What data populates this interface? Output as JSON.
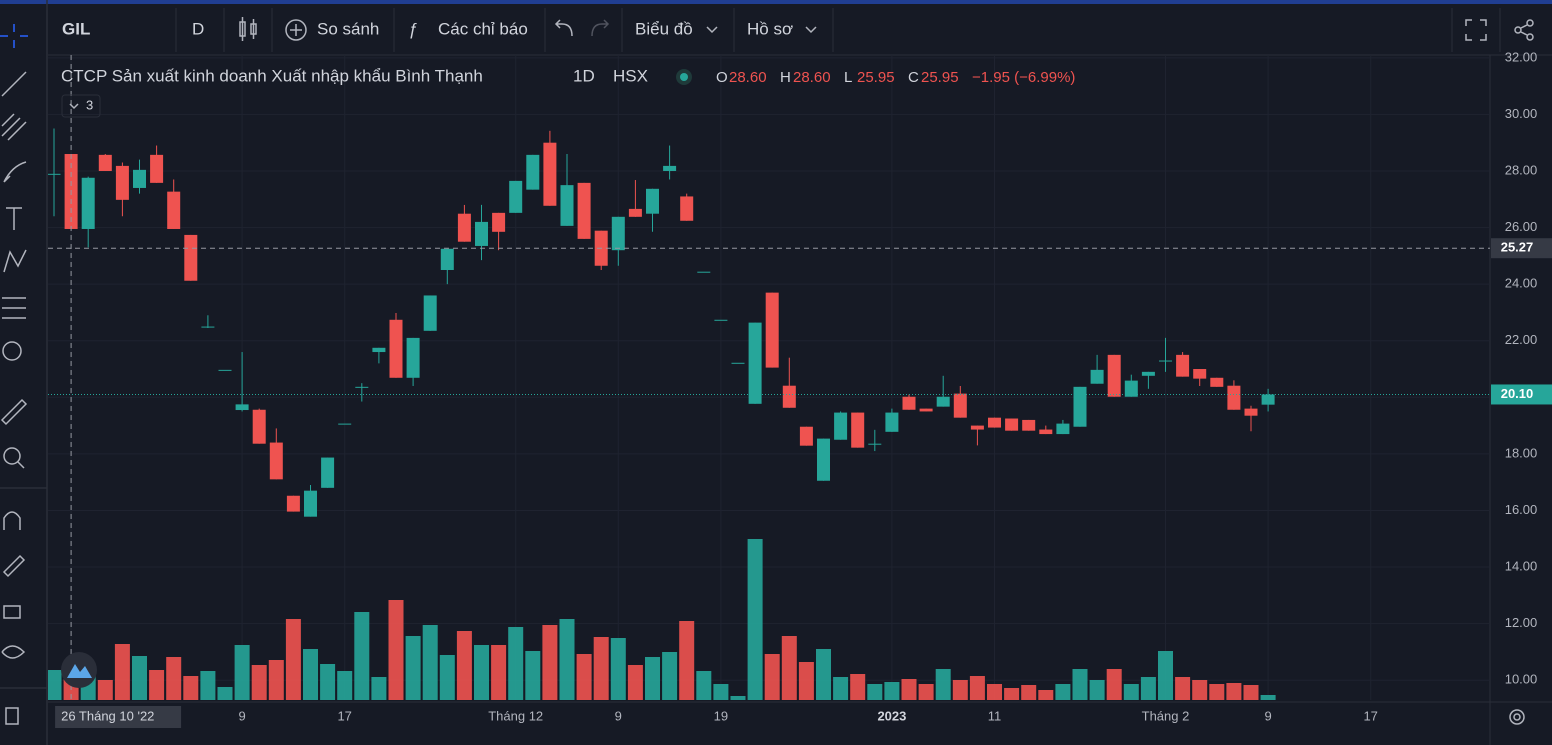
{
  "toolbar": {
    "symbol": "GIL",
    "interval": "D",
    "compare": "So sánh",
    "indicators": "Các chỉ báo",
    "chart_menu": "Biểu đồ",
    "profile_menu": "Hồ sơ"
  },
  "legend": {
    "name": "CTCP Sản xuất kinh doanh Xuất nhập khẩu Bình Thạnh",
    "interval": "1D",
    "exchange": "HSX",
    "ohlc": [
      {
        "key": "O",
        "value": "28.60"
      },
      {
        "key": "H",
        "value": "28.60"
      },
      {
        "key": "L",
        "value": "25.95"
      },
      {
        "key": "C",
        "value": "25.95"
      }
    ],
    "change": "−1.95 (−6.99%)",
    "collapsed_count": 3
  },
  "chart_data": {
    "type": "candlestick",
    "categories": [
      null,
      "26 Tháng 10 '22",
      null,
      null,
      null,
      null,
      null,
      null,
      null,
      null,
      null,
      "9",
      null,
      null,
      null,
      null,
      null,
      "17",
      null,
      null,
      null,
      null,
      null,
      null,
      null,
      null,
      null,
      "Tháng 12",
      null,
      null,
      null,
      null,
      null,
      "9",
      null,
      null,
      null,
      null,
      null,
      "19",
      null,
      null,
      null,
      null,
      null,
      null,
      null,
      null,
      null,
      "2023",
      null,
      null,
      null,
      null,
      null,
      "11",
      null,
      null,
      null,
      null,
      null,
      null,
      null,
      null,
      null,
      "Tháng 2",
      null,
      null,
      null,
      null,
      null,
      "9",
      null,
      null,
      null,
      null,
      null,
      "17"
    ],
    "open": [
      27.9,
      28.6,
      25.95,
      28.57,
      28.18,
      27.4,
      28.57,
      27.27,
      25.74,
      22.5,
      20.97,
      19.55,
      19.56,
      18.4,
      16.52,
      15.78,
      16.8,
      19.07,
      20.37,
      21.6,
      22.74,
      20.69,
      22.35,
      24.5,
      26.49,
      25.35,
      26.52,
      26.52,
      27.34,
      29.0,
      26.06,
      27.58,
      25.89,
      25.2,
      26.66,
      26.49,
      28.0,
      27.1,
      24.44,
      22.74,
      21.22,
      19.77,
      23.7,
      20.41,
      18.96,
      17.05,
      18.5,
      19.46,
      18.36,
      18.78,
      20.02,
      19.6,
      19.67,
      20.13,
      19.0,
      19.28,
      19.25,
      19.2,
      18.86,
      18.7,
      18.96,
      20.48,
      21.5,
      20.02,
      20.76,
      21.3,
      21.5,
      21.0,
      20.69,
      20.41,
      19.6,
      19.74,
      null,
      null,
      null,
      null,
      null,
      null
    ],
    "high": [
      29.5,
      28.6,
      27.8,
      28.6,
      28.3,
      28.4,
      28.9,
      27.7,
      25.74,
      22.9,
      20.97,
      21.6,
      19.6,
      18.9,
      16.52,
      16.9,
      17.87,
      19.07,
      20.5,
      21.75,
      22.98,
      22.1,
      23.6,
      25.25,
      26.8,
      26.8,
      26.52,
      27.65,
      28.57,
      29.42,
      28.6,
      27.58,
      25.89,
      26.38,
      27.68,
      27.37,
      28.9,
      27.2,
      24.44,
      22.74,
      21.22,
      22.64,
      23.7,
      21.4,
      18.96,
      18.54,
      19.5,
      19.46,
      18.85,
      19.6,
      20.1,
      19.6,
      20.76,
      20.4,
      19.0,
      19.28,
      19.25,
      19.2,
      19.0,
      19.2,
      20.37,
      21.5,
      21.5,
      20.8,
      20.9,
      22.1,
      21.6,
      21.0,
      20.69,
      20.6,
      19.7,
      20.3,
      null,
      null,
      null,
      null,
      null,
      null
    ],
    "low": [
      26.4,
      25.95,
      25.3,
      28.0,
      26.4,
      27.2,
      27.58,
      25.95,
      24.12,
      22.45,
      20.97,
      19.5,
      18.36,
      17.1,
      15.96,
      15.78,
      16.8,
      19.07,
      19.85,
      21.2,
      20.69,
      20.4,
      22.35,
      24.0,
      25.5,
      24.85,
      25.2,
      26.52,
      27.34,
      26.77,
      26.06,
      25.6,
      24.5,
      24.65,
      26.38,
      25.85,
      27.7,
      26.24,
      24.44,
      22.74,
      21.22,
      19.77,
      21.05,
      19.63,
      18.29,
      17.05,
      18.5,
      18.22,
      18.1,
      18.78,
      19.56,
      19.5,
      19.67,
      19.28,
      18.3,
      18.93,
      18.82,
      18.82,
      18.7,
      18.7,
      18.96,
      20.48,
      20.02,
      20.02,
      20.3,
      20.9,
      20.73,
      20.4,
      20.37,
      19.56,
      18.8,
      19.5,
      null,
      null,
      null,
      null,
      null,
      null
    ],
    "close": [
      27.9,
      25.95,
      27.76,
      28.0,
      26.98,
      28.04,
      27.58,
      25.95,
      24.12,
      22.5,
      20.97,
      19.75,
      18.36,
      17.1,
      15.96,
      16.7,
      17.87,
      19.07,
      20.37,
      21.75,
      20.69,
      22.1,
      23.6,
      25.25,
      25.5,
      26.2,
      25.85,
      27.65,
      28.57,
      26.77,
      27.5,
      25.6,
      24.65,
      26.38,
      26.38,
      27.37,
      28.18,
      26.24,
      24.44,
      22.74,
      21.22,
      22.64,
      21.05,
      19.63,
      18.29,
      18.54,
      19.46,
      18.22,
      18.36,
      19.46,
      19.56,
      19.5,
      20.02,
      19.28,
      18.86,
      18.93,
      18.82,
      18.82,
      18.7,
      19.07,
      20.37,
      20.97,
      20.02,
      20.59,
      20.9,
      21.3,
      20.73,
      20.66,
      20.37,
      19.56,
      19.35,
      20.1,
      null,
      null,
      null,
      null,
      null,
      null
    ],
    "volume": [
      30,
      30,
      28,
      20,
      56,
      44,
      30,
      43,
      24,
      29,
      13,
      55,
      35,
      40,
      81,
      51,
      36,
      29,
      88,
      23,
      100,
      64,
      75,
      45,
      69,
      55,
      55,
      73,
      49,
      75,
      81,
      46,
      63,
      62,
      35,
      43,
      48,
      79,
      29,
      16,
      4,
      161,
      46,
      64,
      38,
      51,
      23,
      26,
      16,
      18,
      21,
      16,
      31,
      20,
      24,
      16,
      12,
      15,
      10,
      16,
      31,
      20,
      31,
      16,
      23,
      49,
      23,
      20,
      16,
      17,
      15,
      5,
      null,
      null,
      null,
      null,
      null,
      null
    ],
    "ylim": [
      9.3,
      32.1
    ],
    "yticks": [
      {
        "value": 10,
        "label": "10.00"
      },
      {
        "value": 12,
        "label": "12.00"
      },
      {
        "value": 14,
        "label": "14.00"
      },
      {
        "value": 16,
        "label": "16.00"
      },
      {
        "value": 18,
        "label": "18.00"
      },
      {
        "value": 20,
        "label": "20.00"
      },
      {
        "value": 22,
        "label": "22.00"
      },
      {
        "value": 24,
        "label": "24.00"
      },
      {
        "value": 26,
        "label": "26.00"
      },
      {
        "value": 28,
        "label": "28.00"
      },
      {
        "value": 30,
        "label": "30.00"
      },
      {
        "value": 32,
        "label": "32.00"
      }
    ],
    "colors": {
      "up": "#26a69a",
      "down": "#ef5350"
    },
    "grid": true,
    "crosshair": {
      "index": 1,
      "price": {
        "value": 25.27,
        "label": "25.27"
      }
    },
    "last_price": {
      "value": 20.1,
      "label": "20.10"
    }
  }
}
